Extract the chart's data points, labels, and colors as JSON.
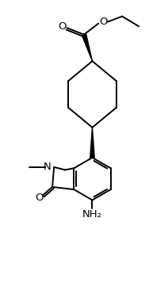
{
  "figsize": [
    2.12,
    3.76
  ],
  "dpi": 100,
  "background": "#ffffff",
  "lc": "#000000",
  "lw": 1.4,
  "fs": 9.5,
  "xlim": [
    0,
    10
  ],
  "ylim": [
    0,
    17.8
  ]
}
